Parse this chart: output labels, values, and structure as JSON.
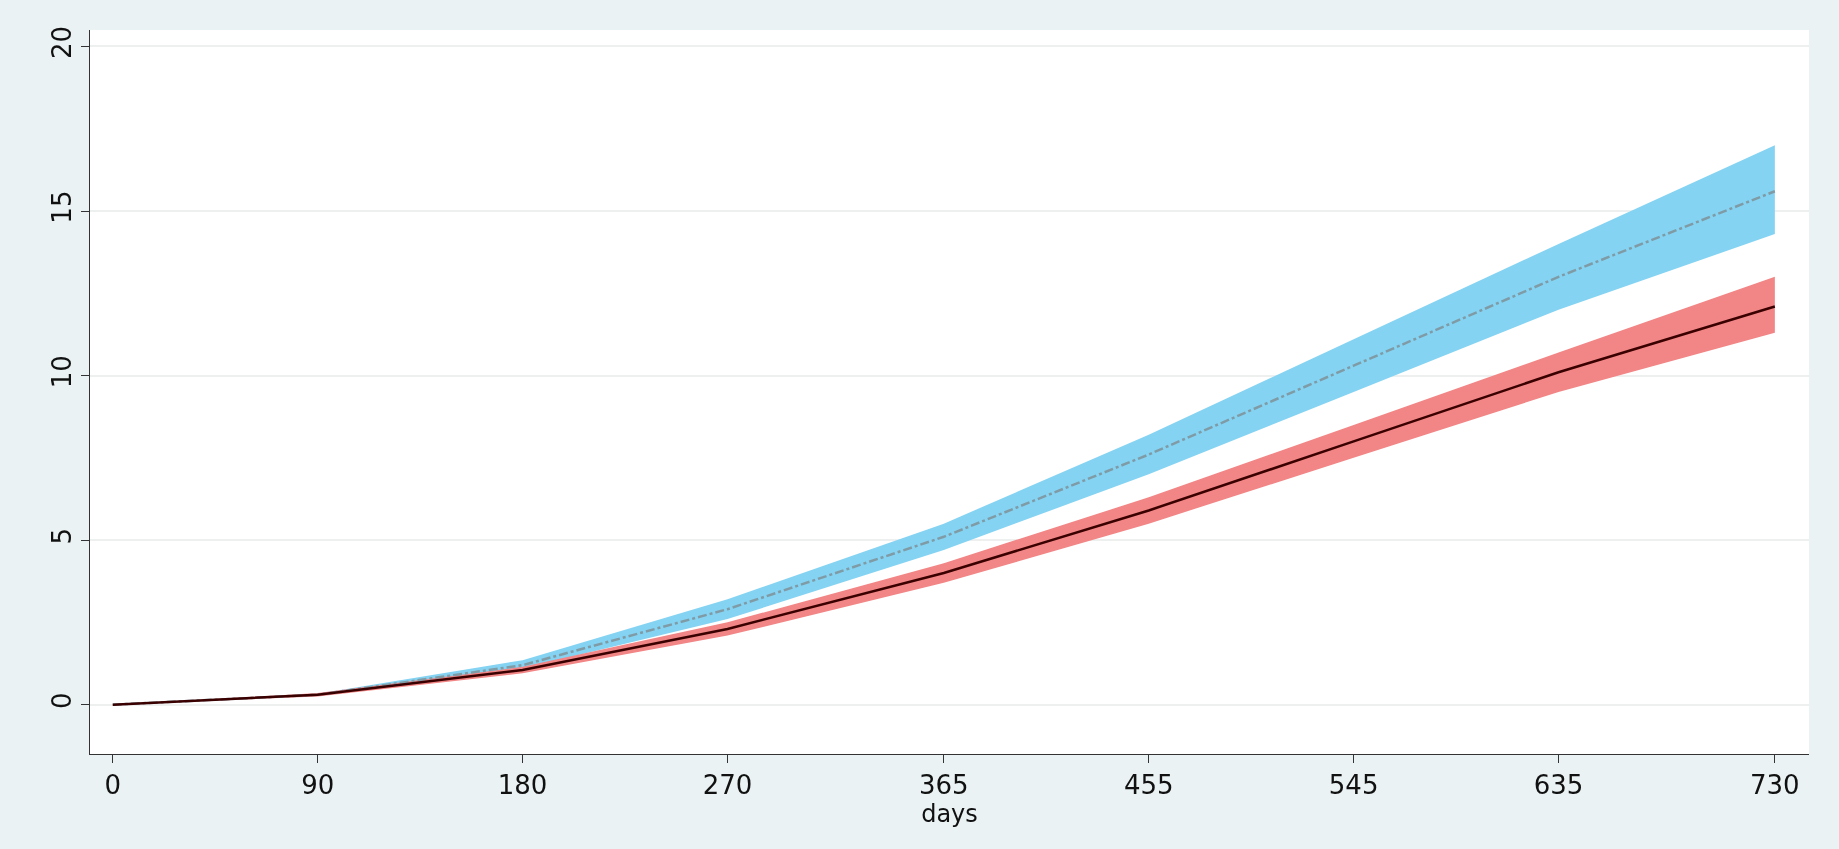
{
  "chart_data": {
    "type": "line",
    "xlabel": "days",
    "x": [
      0,
      90,
      180,
      270,
      365,
      455,
      545,
      635,
      730
    ],
    "series": [
      {
        "color": "#7f9ba6",
        "line_style": "dashdot",
        "values": [
          0,
          0.3,
          1.2,
          2.9,
          5.1,
          7.6,
          10.3,
          13.0,
          15.6
        ],
        "lower": [
          0,
          0.28,
          1.1,
          2.6,
          4.7,
          7.0,
          9.5,
          12.0,
          14.3
        ],
        "upper": [
          0,
          0.33,
          1.35,
          3.2,
          5.5,
          8.2,
          11.1,
          14.0,
          17.0
        ]
      },
      {
        "color": "#3a0000",
        "line_style": "solid",
        "values": [
          0,
          0.3,
          1.05,
          2.3,
          4.0,
          5.9,
          8.0,
          10.1,
          12.1
        ],
        "lower": [
          0,
          0.25,
          0.95,
          2.1,
          3.7,
          5.5,
          7.5,
          9.5,
          11.3
        ],
        "upper": [
          0,
          0.35,
          1.15,
          2.5,
          4.3,
          6.3,
          8.5,
          10.7,
          13.0
        ]
      }
    ],
    "xlim": [
      -10,
      745
    ],
    "xticks": [
      0,
      90,
      180,
      270,
      365,
      455,
      545,
      635,
      730
    ],
    "ylim": [
      -1.5,
      20.5
    ],
    "yticks": [
      0,
      5,
      10,
      15,
      20
    ],
    "grid": "y"
  }
}
